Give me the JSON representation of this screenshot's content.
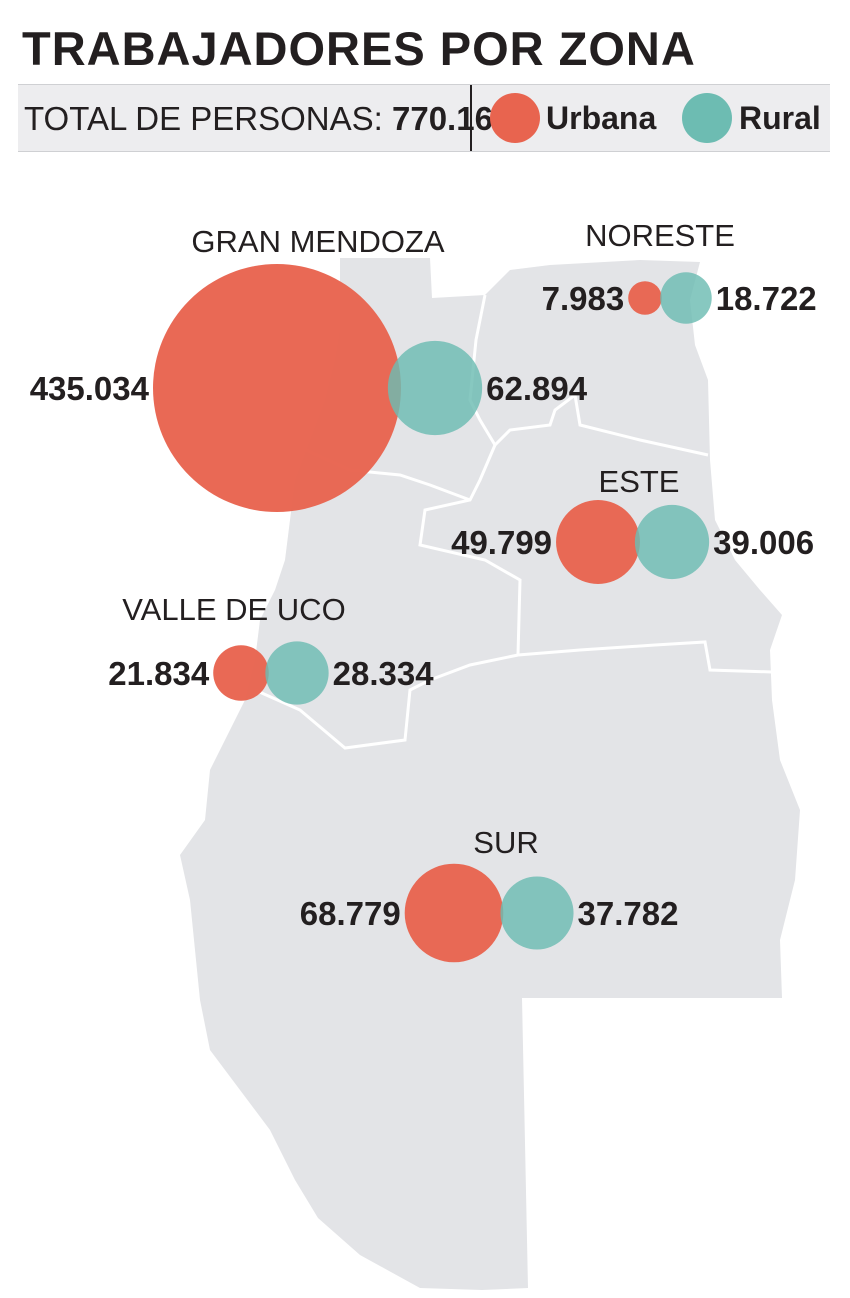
{
  "header": {
    "title": "TRABAJADORES POR ZONA",
    "total_label": "TOTAL DE PERSONAS:",
    "total_value": "770.166"
  },
  "legend": [
    {
      "label": "Urbana",
      "color": "#e8644f"
    },
    {
      "label": "Rural",
      "color": "#6dbcb2"
    }
  ],
  "map": {
    "fill_color": "#e3e4e7",
    "border_color": "#ffffff"
  },
  "zones": [
    {
      "name": "GRAN MENDOZA",
      "urbana": 435034,
      "rural": 62894,
      "urbana_label": "435.034",
      "rural_label": "62.894"
    },
    {
      "name": "NORESTE",
      "urbana": 7983,
      "rural": 18722,
      "urbana_label": "7.983",
      "rural_label": "18.722"
    },
    {
      "name": "ESTE",
      "urbana": 49799,
      "rural": 39006,
      "urbana_label": "49.799",
      "rural_label": "39.006"
    },
    {
      "name": "VALLE DE UCO",
      "urbana": 21834,
      "rural": 28334,
      "urbana_label": "21.834",
      "rural_label": "28.334"
    },
    {
      "name": "SUR",
      "urbana": 68779,
      "rural": 37782,
      "urbana_label": "68.779",
      "rural_label": "37.782"
    }
  ]
}
